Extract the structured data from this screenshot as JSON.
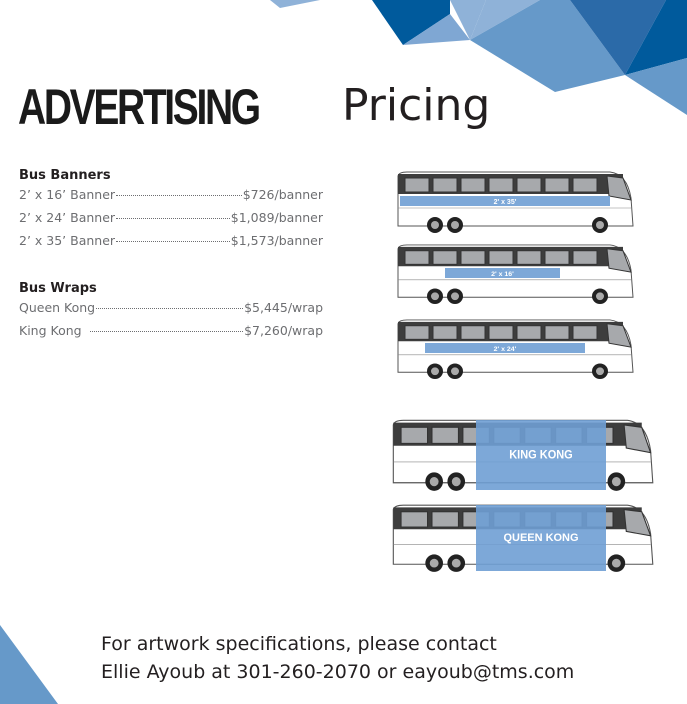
{
  "title": {
    "bold": "ADVERTISING",
    "light": "Pricing"
  },
  "banners": {
    "heading": "Bus Banners",
    "items": [
      {
        "label": "2’ x 16’ Banner",
        "price": "$726/banner"
      },
      {
        "label": "2’ x 24’ Banner",
        "price": "$1,089/banner"
      },
      {
        "label": "2’ x 35’ Banner",
        "price": "$1,573/banner"
      }
    ]
  },
  "wraps": {
    "heading": "Bus Wraps",
    "items": [
      {
        "label": "Queen Kong",
        "price": "$5,445/wrap"
      },
      {
        "label": "King Kong",
        "price": "$7,260/wrap"
      }
    ]
  },
  "buses": [
    "2' x 35'",
    "2' x 16'",
    "2' x 24'",
    "KING KONG",
    "QUEEN KONG"
  ],
  "contact": {
    "line1": "For artwork specifications, please contact",
    "line2": "Ellie Ayoub at 301-260-2070 or eayoub@tms.com"
  },
  "colors": {
    "dark_blue": "#005a9c",
    "mid_blue": "#2b6aa8",
    "light_blue": "#6699c9",
    "pale_blue": "#8fb2d8"
  }
}
